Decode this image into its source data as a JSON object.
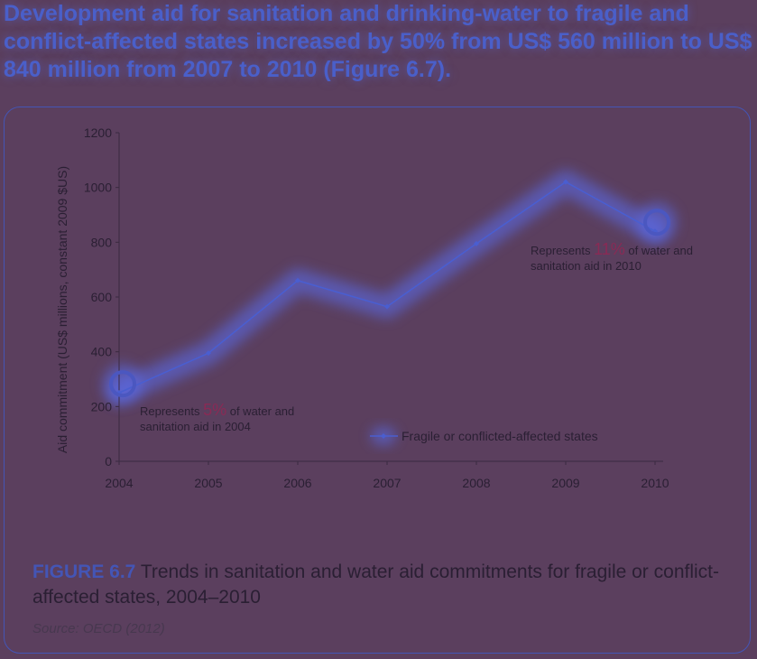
{
  "headline": "Development aid for sanitation and drinking-water to fragile and conflict-affected states increased by 50% from US$ 560 million to US$ 840 million from 2007 to 2010 (Figure 6.7).",
  "caption": {
    "label": "FIGURE 6.7",
    "text": " Trends in sanitation and water aid commitments for fragile or conflict-affected states, 2004–2010"
  },
  "source": "Source: OECD (2012)",
  "colors": {
    "line": "#4a5ed0",
    "highlight": "#5a6df0",
    "text": "#2a1f33",
    "percent": "#8a2a55"
  },
  "chart_data": {
    "type": "line",
    "title": "",
    "xlabel": "",
    "ylabel": "Aid commitment (US$ millions, constant 2009 $US)",
    "x": [
      "2004",
      "2005",
      "2006",
      "2007",
      "2008",
      "2009",
      "2010"
    ],
    "ylim": [
      0,
      1200
    ],
    "yticks": [
      "0",
      "200",
      "400",
      "600",
      "800",
      "1000",
      "1200"
    ],
    "series": [
      {
        "name": "Fragile or conflicted-affected states",
        "values": [
          250,
          395,
          660,
          565,
          795,
          1020,
          840
        ]
      }
    ],
    "legend": "bottom-center",
    "annotations": [
      {
        "prefix": "Represents ",
        "percent": "5%",
        "suffix": " of water and",
        "line2": "sanitation aid in 2004",
        "year": "2004"
      },
      {
        "prefix": "Represents ",
        "percent": "11%",
        "suffix": " of water and",
        "line2": "sanitation aid in 2010",
        "year": "2010"
      }
    ]
  }
}
